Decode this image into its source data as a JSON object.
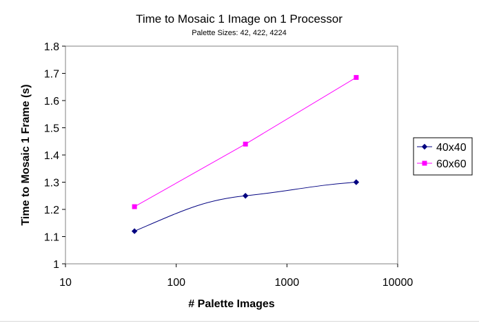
{
  "chart_data": {
    "type": "line",
    "title": "Time to Mosaic 1 Image on 1 Processor",
    "subtitle": "Palette Sizes: 42, 422, 4224",
    "xlabel": "# Palette Images",
    "ylabel": "Time to Mosaic 1 Frame  (s)",
    "xscale": "log",
    "xlim": [
      10,
      10000
    ],
    "ylim": [
      1,
      1.8
    ],
    "x_ticks": [
      "10",
      "100",
      "1000",
      "10000"
    ],
    "y_ticks": [
      "1",
      "1.1",
      "1.2",
      "1.3",
      "1.4",
      "1.5",
      "1.6",
      "1.7",
      "1.8"
    ],
    "grid": false,
    "legend_position": "right",
    "x": [
      42,
      422,
      4224
    ],
    "series": [
      {
        "name": "40x40",
        "values": [
          1.12,
          1.25,
          1.3
        ],
        "color": "#000080",
        "marker": "diamond"
      },
      {
        "name": "60x60",
        "values": [
          1.21,
          1.44,
          1.685
        ],
        "color": "#ff00ff",
        "marker": "square"
      }
    ]
  }
}
